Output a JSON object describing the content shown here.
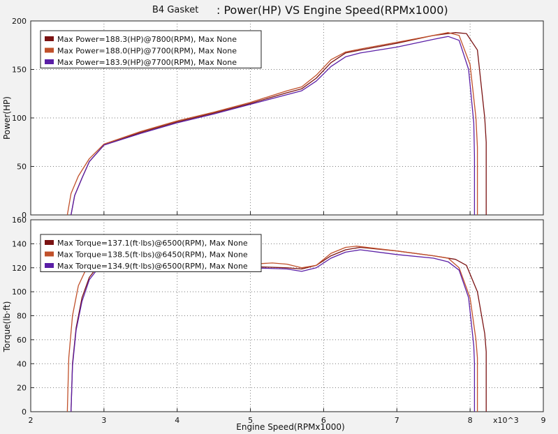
{
  "header": {
    "run_label": "B4 Gasket",
    "title": ": Power(HP) VS Engine Speed(RPMx1000)"
  },
  "x_axis": {
    "label": "Engine Speed(RPMx1000)",
    "multiplier_label": "x10^3",
    "ticks": [
      "2",
      "3",
      "4",
      "5",
      "6",
      "7",
      "8",
      "9"
    ]
  },
  "colors": {
    "series_1": "#7a1212",
    "series_2": "#c0502a",
    "series_3": "#5a1ea6",
    "grid": "#7a7a7a",
    "plot_bg": "#ffffff"
  },
  "chart_data": [
    {
      "type": "line",
      "ylabel": "Power(HP)",
      "xlim": [
        2,
        9
      ],
      "ylim": [
        0,
        200
      ],
      "yticks": [
        "0",
        "50",
        "100",
        "150",
        "200"
      ],
      "grid": true,
      "legend_position": "top-left",
      "series": [
        {
          "name": "Max Power=188.3(HP)@7800(RPM), Max None",
          "x": [
            2.55,
            2.6,
            2.7,
            2.8,
            3.0,
            3.5,
            4.0,
            4.5,
            5.0,
            5.5,
            5.7,
            5.9,
            6.1,
            6.3,
            6.5,
            7.0,
            7.5,
            7.8,
            7.95,
            8.1,
            8.2,
            8.22,
            8.22
          ],
          "y": [
            0,
            20,
            38,
            55,
            72,
            85,
            96,
            105,
            115,
            126,
            130,
            141,
            157,
            167,
            170,
            177,
            185,
            188,
            187,
            170,
            100,
            75,
            0
          ]
        },
        {
          "name": "Max Power=188.0(HP)@7700(RPM), Max None",
          "x": [
            2.5,
            2.55,
            2.65,
            2.8,
            3.0,
            3.5,
            4.0,
            4.5,
            5.0,
            5.5,
            5.7,
            5.9,
            6.1,
            6.3,
            6.5,
            7.0,
            7.5,
            7.7,
            7.85,
            8.0,
            8.08,
            8.1,
            8.1
          ],
          "y": [
            0,
            22,
            40,
            58,
            73,
            86,
            97,
            106,
            116,
            128,
            132,
            144,
            160,
            168,
            171,
            178,
            185,
            188,
            185,
            155,
            100,
            70,
            0
          ]
        },
        {
          "name": "Max Power=183.9(HP)@7700(RPM), Max None",
          "x": [
            2.55,
            2.6,
            2.7,
            2.8,
            3.0,
            3.5,
            4.0,
            4.5,
            5.0,
            5.5,
            5.7,
            5.9,
            6.1,
            6.3,
            6.5,
            7.0,
            7.5,
            7.7,
            7.85,
            7.98,
            8.05,
            8.06,
            8.06
          ],
          "y": [
            0,
            20,
            38,
            55,
            72,
            84,
            95,
            104,
            114,
            124,
            128,
            138,
            153,
            163,
            167,
            173,
            181,
            184,
            180,
            150,
            95,
            60,
            0
          ]
        }
      ]
    },
    {
      "type": "line",
      "ylabel": "Torque(lb·ft)",
      "xlim": [
        2,
        9
      ],
      "ylim": [
        0,
        160
      ],
      "yticks": [
        "0",
        "20",
        "40",
        "60",
        "80",
        "100",
        "120",
        "140",
        "160"
      ],
      "grid": true,
      "legend_position": "top-left",
      "series": [
        {
          "name": "Max Torque=137.1(ft·lbs)@6500(RPM), Max None",
          "x": [
            2.55,
            2.57,
            2.62,
            2.7,
            2.8,
            2.9,
            3.0,
            3.5,
            4.0,
            4.5,
            5.0,
            5.5,
            5.7,
            5.9,
            6.1,
            6.3,
            6.5,
            7.0,
            7.5,
            7.8,
            7.95,
            8.1,
            8.2,
            8.22,
            8.22
          ],
          "y": [
            0,
            40,
            70,
            95,
            112,
            120,
            123,
            125,
            123,
            122,
            121,
            120,
            119,
            122,
            130,
            135,
            137,
            134,
            130,
            127,
            122,
            100,
            65,
            50,
            0
          ]
        },
        {
          "name": "Max Torque=138.5(ft·lbs)@6450(RPM), Max None",
          "x": [
            2.5,
            2.52,
            2.57,
            2.65,
            2.75,
            2.85,
            3.0,
            3.5,
            4.0,
            4.5,
            5.0,
            5.3,
            5.5,
            5.7,
            5.9,
            6.1,
            6.3,
            6.45,
            7.0,
            7.5,
            7.7,
            7.85,
            8.0,
            8.08,
            8.1,
            8.1
          ],
          "y": [
            0,
            45,
            80,
            105,
            118,
            122,
            124,
            126,
            125,
            123,
            123,
            124,
            123,
            120,
            122,
            132,
            137,
            138,
            134,
            130,
            128,
            120,
            95,
            60,
            45,
            0
          ]
        },
        {
          "name": "Max Torque=134.9(ft·lbs)@6500(RPM), Max None",
          "x": [
            2.55,
            2.57,
            2.62,
            2.7,
            2.8,
            2.9,
            3.0,
            3.5,
            4.0,
            4.5,
            5.0,
            5.5,
            5.7,
            5.9,
            6.1,
            6.3,
            6.5,
            7.0,
            7.5,
            7.7,
            7.85,
            7.98,
            8.05,
            8.06,
            8.06
          ],
          "y": [
            0,
            38,
            68,
            92,
            110,
            118,
            121,
            123,
            122,
            121,
            120,
            119,
            117,
            120,
            128,
            133,
            135,
            131,
            128,
            125,
            118,
            95,
            55,
            40,
            0
          ]
        }
      ]
    }
  ]
}
